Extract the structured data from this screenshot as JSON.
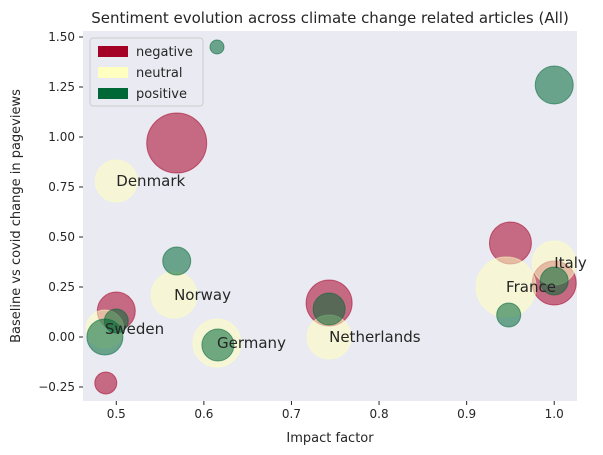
{
  "chart_data": {
    "type": "scatter",
    "title": "Sentiment evolution across climate change related articles (All)",
    "xlabel": "Impact factor",
    "ylabel": "Baseline vs covid change in pageviews",
    "xlim": [
      0.462,
      1.026
    ],
    "ylim": [
      -0.32,
      1.53
    ],
    "xticks": [
      0.5,
      0.6,
      0.7,
      0.8,
      0.9,
      1.0
    ],
    "xtick_labels": [
      "0.5",
      "0.6",
      "0.7",
      "0.8",
      "0.9",
      "1.0"
    ],
    "yticks": [
      -0.25,
      0.0,
      0.25,
      0.5,
      0.75,
      1.0,
      1.25,
      1.5
    ],
    "ytick_labels": [
      "−0.25",
      "0.00",
      "0.25",
      "0.50",
      "0.75",
      "1.00",
      "1.25",
      "1.50"
    ],
    "grid": false,
    "legend_position": "upper-left",
    "series": [
      {
        "name": "negative",
        "color": "#a50026",
        "points": [
          {
            "x": 0.569,
            "y": 0.97,
            "r": 30
          },
          {
            "x": 0.5,
            "y": 0.13,
            "r": 19
          },
          {
            "x": 0.488,
            "y": -0.23,
            "r": 11
          },
          {
            "x": 0.743,
            "y": 0.17,
            "r": 23
          },
          {
            "x": 0.95,
            "y": 0.47,
            "r": 21
          },
          {
            "x": 1.0,
            "y": 0.27,
            "r": 22
          }
        ]
      },
      {
        "name": "neutral",
        "color": "#ffffbf",
        "points": [
          {
            "x": 0.5,
            "y": 0.78,
            "r": 21
          },
          {
            "x": 0.566,
            "y": 0.21,
            "r": 23
          },
          {
            "x": 0.487,
            "y": 0.04,
            "r": 19
          },
          {
            "x": 0.615,
            "y": -0.03,
            "r": 24
          },
          {
            "x": 0.743,
            "y": 0.0,
            "r": 22
          },
          {
            "x": 0.945,
            "y": 0.25,
            "r": 30
          },
          {
            "x": 1.0,
            "y": 0.37,
            "r": 22
          }
        ]
      },
      {
        "name": "positive",
        "color": "#006837",
        "points": [
          {
            "x": 0.615,
            "y": 1.45,
            "r": 7
          },
          {
            "x": 1.0,
            "y": 1.26,
            "r": 19
          },
          {
            "x": 0.569,
            "y": 0.38,
            "r": 14
          },
          {
            "x": 0.487,
            "y": 0.0,
            "r": 18
          },
          {
            "x": 0.5,
            "y": 0.08,
            "r": 12
          },
          {
            "x": 0.616,
            "y": -0.04,
            "r": 16
          },
          {
            "x": 0.743,
            "y": 0.14,
            "r": 16
          },
          {
            "x": 0.948,
            "y": 0.11,
            "r": 12
          },
          {
            "x": 1.0,
            "y": 0.28,
            "r": 14
          }
        ]
      }
    ],
    "annotations": [
      {
        "text": "Denmark",
        "x": 0.5,
        "y": 0.78
      },
      {
        "text": "Norway",
        "x": 0.566,
        "y": 0.21
      },
      {
        "text": "Sweden",
        "x": 0.487,
        "y": 0.04
      },
      {
        "text": "Germany",
        "x": 0.615,
        "y": -0.03
      },
      {
        "text": "Netherlands",
        "x": 0.743,
        "y": 0.0
      },
      {
        "text": "France",
        "x": 0.945,
        "y": 0.25
      },
      {
        "text": "Italy",
        "x": 1.0,
        "y": 0.37
      }
    ]
  }
}
